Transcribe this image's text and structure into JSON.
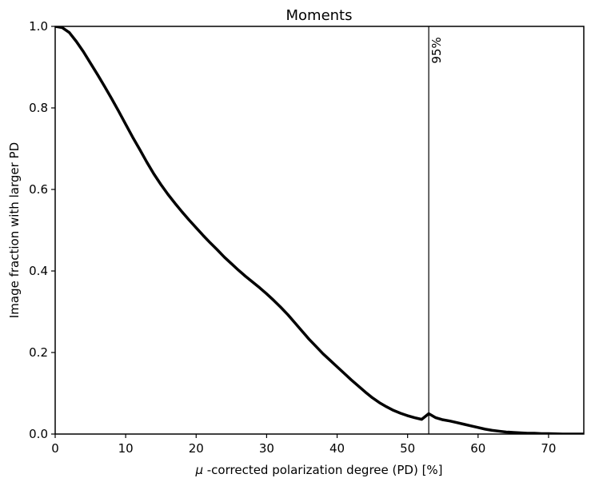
{
  "chart_data": {
    "type": "line",
    "title": "Moments",
    "xlabel_mu": "μ",
    "xlabel_rest": "-corrected polarization degree (PD) [%]",
    "ylabel": "Image fraction with larger PD",
    "xlim": [
      0,
      75
    ],
    "ylim": [
      0,
      1
    ],
    "xticks": [
      0,
      10,
      20,
      30,
      40,
      50,
      60,
      70
    ],
    "yticks": [
      0.0,
      0.2,
      0.4,
      0.6,
      0.8,
      1.0
    ],
    "xtick_labels": [
      "0",
      "10",
      "20",
      "30",
      "40",
      "50",
      "60",
      "70"
    ],
    "ytick_labels": [
      "0.0",
      "0.2",
      "0.4",
      "0.6",
      "0.8",
      "1.0"
    ],
    "grid": false,
    "line_color": "#000000",
    "series": [
      {
        "x": [
          0,
          1,
          2,
          3,
          4,
          5,
          6,
          7,
          8,
          9,
          10,
          11,
          12,
          13,
          14,
          15,
          16,
          17,
          18,
          19,
          20,
          21,
          22,
          23,
          24,
          25,
          26,
          27,
          28,
          29,
          30,
          31,
          32,
          33,
          34,
          35,
          36,
          37,
          38,
          39,
          40,
          41,
          42,
          43,
          44,
          45,
          46,
          47,
          48,
          49,
          50,
          51,
          52,
          53,
          54,
          55,
          56,
          57,
          58,
          59,
          60,
          61,
          62,
          63,
          64,
          65,
          66,
          67,
          68,
          69,
          70,
          72,
          75
        ],
        "values": [
          1.0,
          0.997,
          0.985,
          0.963,
          0.938,
          0.91,
          0.882,
          0.853,
          0.823,
          0.792,
          0.76,
          0.728,
          0.698,
          0.667,
          0.638,
          0.612,
          0.588,
          0.566,
          0.545,
          0.525,
          0.506,
          0.487,
          0.469,
          0.452,
          0.434,
          0.418,
          0.402,
          0.387,
          0.373,
          0.359,
          0.344,
          0.328,
          0.311,
          0.293,
          0.273,
          0.253,
          0.233,
          0.215,
          0.197,
          0.181,
          0.165,
          0.149,
          0.133,
          0.118,
          0.103,
          0.089,
          0.077,
          0.067,
          0.058,
          0.051,
          0.045,
          0.04,
          0.036,
          0.05,
          0.04,
          0.035,
          0.032,
          0.028,
          0.024,
          0.02,
          0.016,
          0.012,
          0.009,
          0.007,
          0.005,
          0.004,
          0.003,
          0.002,
          0.002,
          0.001,
          0.001,
          0.0,
          0.0
        ]
      }
    ],
    "vline": {
      "x": 53,
      "label": "95%"
    }
  }
}
